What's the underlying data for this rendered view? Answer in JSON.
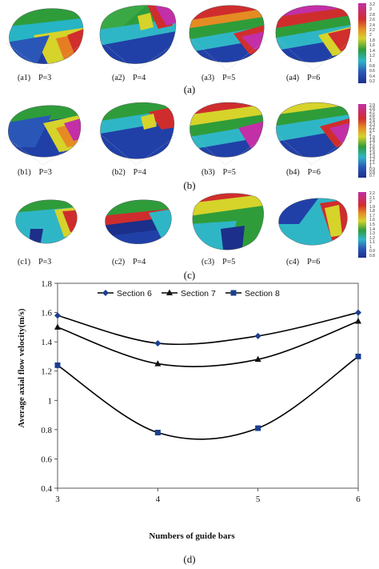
{
  "rows": [
    {
      "caption": "(a)",
      "panels": [
        {
          "label": "(a1)　P=3"
        },
        {
          "label": "(a2)　P=4"
        },
        {
          "label": "(a3)　P=5"
        },
        {
          "label": "(a4)　P=6"
        }
      ],
      "colorbar": [
        "3.2",
        "3",
        "2.8",
        "2.6",
        "2.4",
        "2.2",
        "2",
        "1.8",
        "1.6",
        "1.4",
        "1.2",
        "1",
        "0.8",
        "0.6",
        "0.4",
        "0.2"
      ]
    },
    {
      "caption": "(b)",
      "panels": [
        {
          "label": "(b1)　P=3"
        },
        {
          "label": "(b2)　P=4"
        },
        {
          "label": "(b3)　P=5"
        },
        {
          "label": "(b4)　P=6"
        }
      ],
      "colorbar": [
        "2.9",
        "2.8",
        "2.7",
        "2.6",
        "2.5",
        "2.4",
        "2.3",
        "2.2",
        "2.1",
        "2",
        "1.9",
        "1.8",
        "1.7",
        "1.6",
        "1.5",
        "1.4",
        "1.3",
        "1.2",
        "1.1",
        "1",
        "0.9",
        "0.8",
        "0.7"
      ]
    },
    {
      "caption": "(c)",
      "panels": [
        {
          "label": "(c1)　P=3"
        },
        {
          "label": "(c2)　P=4"
        },
        {
          "label": "(c3)　P=5"
        },
        {
          "label": "(c4)　P=6"
        }
      ],
      "colorbar": [
        "2.2",
        "2.1",
        "2",
        "1.9",
        "1.8",
        "1.7",
        "1.6",
        "1.5",
        "1.4",
        "1.3",
        "1.2",
        "1.1",
        "1",
        "0.9",
        "0.8"
      ]
    }
  ],
  "chart_caption": "(d)",
  "chart_data": {
    "type": "line",
    "xlabel": "Numbers of guide bars",
    "ylabel": "Average axial flow velocity(m/s)",
    "x": [
      3,
      4,
      5,
      6
    ],
    "xlim": [
      3,
      6
    ],
    "ylim": [
      0.4,
      1.8
    ],
    "yticks": [
      "0.4",
      "0.6",
      "0.8",
      "1",
      "1.2",
      "1.4",
      "1.6",
      "1.8"
    ],
    "xticks": [
      "3",
      "4",
      "5",
      "6"
    ],
    "legend_position": "top",
    "series": [
      {
        "name": "Section 6",
        "marker": "diamond",
        "values": [
          1.58,
          1.39,
          1.44,
          1.6
        ]
      },
      {
        "name": "Section 7",
        "marker": "triangle",
        "values": [
          1.5,
          1.25,
          1.28,
          1.54
        ]
      },
      {
        "name": "Section 8",
        "marker": "square",
        "values": [
          1.24,
          0.78,
          0.81,
          1.3
        ]
      }
    ]
  },
  "colors": {
    "line": "#000000",
    "series_marker": [
      "#1c3f8f",
      "#111111",
      "#1c3f8f"
    ]
  }
}
